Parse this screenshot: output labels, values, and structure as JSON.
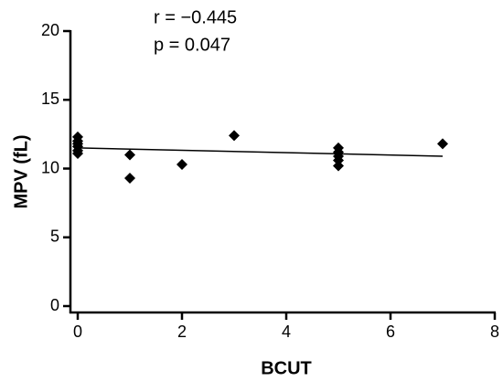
{
  "chart_data": {
    "type": "scatter",
    "x_label": "BCUT",
    "y_label": "MPV (fL)",
    "annotations": [
      "r = −0.445",
      "p = 0.047"
    ],
    "annotation_color": "#e8191f",
    "series": [
      {
        "color": "#000000",
        "x": [
          0,
          0,
          0,
          0,
          0,
          0,
          1,
          1,
          2,
          3,
          5,
          5,
          5,
          5,
          5,
          7
        ],
        "values": [
          12.3,
          12.0,
          11.8,
          11.6,
          11.3,
          11.1,
          11.0,
          9.3,
          10.3,
          12.4,
          11.5,
          11.2,
          10.9,
          10.6,
          10.2,
          11.8
        ]
      }
    ],
    "fit_line": {
      "x": [
        0,
        7
      ],
      "y": [
        11.5,
        10.9
      ],
      "color": "#000000"
    },
    "xlim": [
      0,
      8
    ],
    "xticks": [
      0,
      2,
      4,
      6,
      8
    ],
    "ylim": [
      0,
      20
    ],
    "yticks": [
      0,
      5,
      10,
      15,
      20
    ],
    "grid": false
  }
}
